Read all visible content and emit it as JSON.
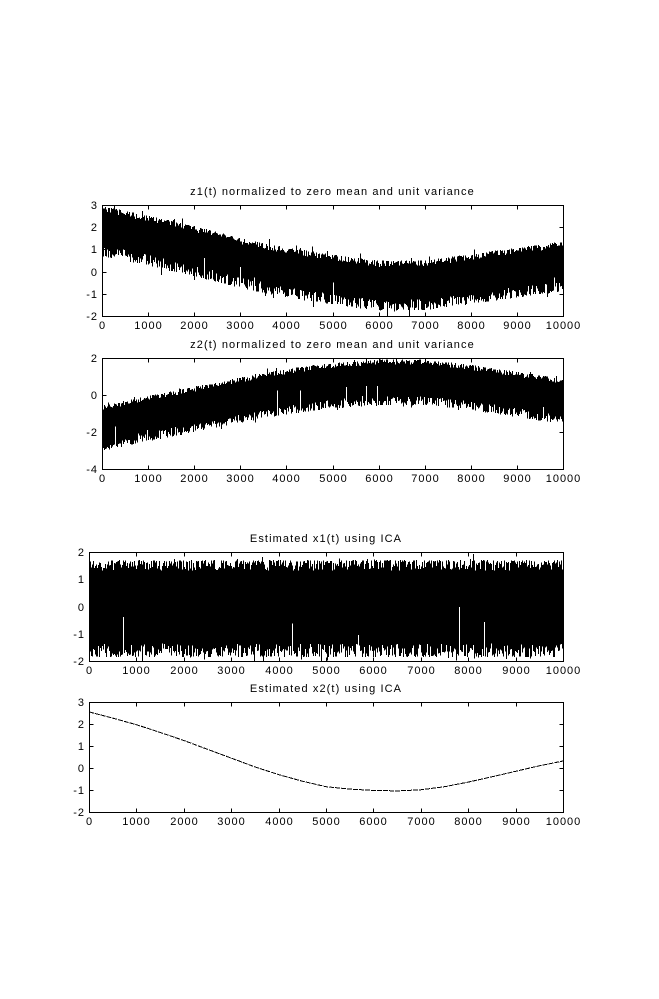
{
  "figure": {
    "background_color": "#ffffff",
    "ink_color": "#000000"
  },
  "chart_data": [
    {
      "id": "z1",
      "type": "line",
      "title": "z1(t) normalized to zero mean and unit variance",
      "xlabel": "",
      "ylabel": "",
      "xlim": [
        0,
        10000
      ],
      "ylim": [
        -2,
        3
      ],
      "x_ticks": [
        0,
        1000,
        2000,
        3000,
        4000,
        5000,
        6000,
        7000,
        8000,
        9000,
        10000
      ],
      "y_ticks": [
        -2,
        -1,
        0,
        1,
        2,
        3
      ],
      "grid": false,
      "legend": null,
      "color": "#000000",
      "series": [
        {
          "name": "z1",
          "kind": "noise-band",
          "t": [
            0,
            1000,
            2000,
            3000,
            4000,
            5000,
            6000,
            7000,
            8000,
            9000,
            10000
          ],
          "center": [
            1.82,
            1.39,
            0.92,
            0.38,
            -0.04,
            -0.36,
            -0.64,
            -0.61,
            -0.34,
            -0.04,
            0.23
          ],
          "halfwidth": 1.13,
          "top_jitter": 0.28,
          "bottom_jitter": 0.5,
          "spike_prob": 0.05,
          "spike_max": 0.3,
          "seed": 11
        }
      ]
    },
    {
      "id": "z2",
      "type": "line",
      "title": "z2(t) normalized to zero mean and unit variance",
      "xlabel": "",
      "ylabel": "",
      "xlim": [
        0,
        10000
      ],
      "ylim": [
        -4,
        2
      ],
      "x_ticks": [
        0,
        1000,
        2000,
        3000,
        4000,
        5000,
        6000,
        7000,
        8000,
        9000,
        10000
      ],
      "y_ticks": [
        -4,
        -2,
        0,
        2
      ],
      "grid": false,
      "legend": null,
      "color": "#000000",
      "series": [
        {
          "name": "z2",
          "kind": "noise-band",
          "t": [
            0,
            1000,
            2000,
            3000,
            4000,
            5000,
            6000,
            7000,
            8000,
            9000,
            10000
          ],
          "center": [
            -1.78,
            -1.28,
            -0.78,
            -0.28,
            0.18,
            0.5,
            0.68,
            0.68,
            0.4,
            0.03,
            -0.35
          ],
          "halfwidth": 1.23,
          "top_jitter": 0.28,
          "bottom_jitter": 0.5,
          "spike_prob": 0.05,
          "spike_max": 0.3,
          "seed": 22
        }
      ]
    },
    {
      "id": "x1-estimate",
      "type": "line",
      "title": "Estimated x1(t) using ICA",
      "xlabel": "",
      "ylabel": "",
      "xlim": [
        0,
        10000
      ],
      "ylim": [
        -2,
        2
      ],
      "x_ticks": [
        0,
        1000,
        2000,
        3000,
        4000,
        5000,
        6000,
        7000,
        8000,
        9000,
        10000
      ],
      "y_ticks": [
        -2,
        -1,
        0,
        1,
        2
      ],
      "grid": false,
      "legend": null,
      "color": "#000000",
      "series": [
        {
          "name": "estimated x1",
          "kind": "noise-band",
          "t": [
            0,
            10000
          ],
          "center": [
            -0.08,
            -0.08
          ],
          "halfwidth": 1.78,
          "top_jitter": 0.38,
          "bottom_jitter": 0.5,
          "spike_prob": 0.06,
          "spike_max": 0.25,
          "seed": 33
        }
      ]
    },
    {
      "id": "x2-estimate",
      "type": "line",
      "title": "Estimated x2(t) using ICA",
      "xlabel": "",
      "ylabel": "",
      "xlim": [
        0,
        10000
      ],
      "ylim": [
        -2,
        3
      ],
      "x_ticks": [
        0,
        1000,
        2000,
        3000,
        4000,
        5000,
        6000,
        7000,
        8000,
        9000,
        10000
      ],
      "y_ticks": [
        -2,
        -1,
        0,
        1,
        2,
        3
      ],
      "grid": false,
      "legend": null,
      "color": "#000000",
      "series": [
        {
          "name": "estimated x2",
          "kind": "curve",
          "t": [
            0,
            500,
            1000,
            1500,
            2000,
            2500,
            3000,
            3500,
            4000,
            4500,
            5000,
            5500,
            6000,
            6500,
            7000,
            7500,
            8000,
            8500,
            9000,
            9500,
            10000
          ],
          "values": [
            2.55,
            2.27,
            1.97,
            1.62,
            1.25,
            0.85,
            0.45,
            0.05,
            -0.3,
            -0.6,
            -0.85,
            -0.96,
            -1.02,
            -1.04,
            -0.99,
            -0.85,
            -0.64,
            -0.4,
            -0.15,
            0.1,
            0.32
          ]
        }
      ]
    }
  ]
}
